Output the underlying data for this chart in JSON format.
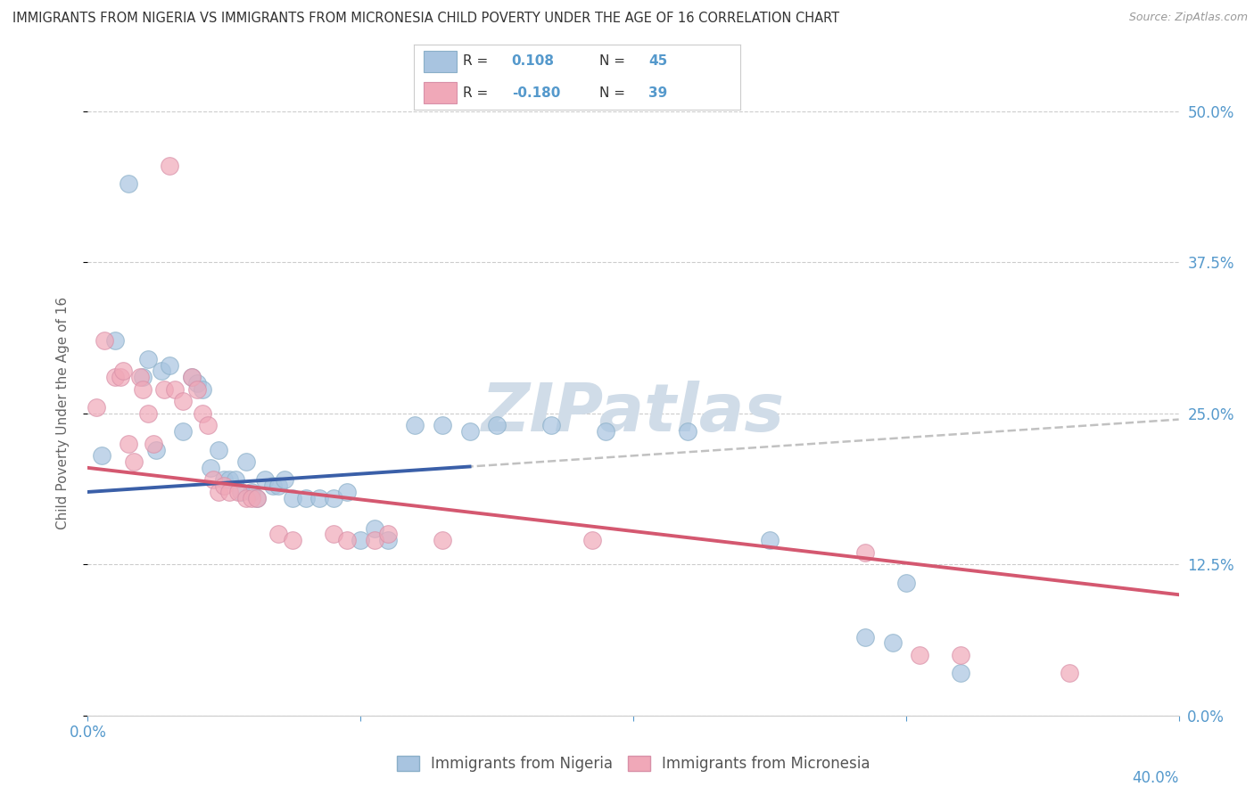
{
  "title": "IMMIGRANTS FROM NIGERIA VS IMMIGRANTS FROM MICRONESIA CHILD POVERTY UNDER THE AGE OF 16 CORRELATION CHART",
  "source": "Source: ZipAtlas.com",
  "ylabel": "Child Poverty Under the Age of 16",
  "xlim": [
    0.0,
    40.0
  ],
  "ylim": [
    0.0,
    50.0
  ],
  "yticks": [
    0.0,
    12.5,
    25.0,
    37.5,
    50.0
  ],
  "xticks": [
    0.0,
    10.0,
    20.0,
    30.0,
    40.0
  ],
  "nigeria_color": "#a8c4e0",
  "nigeria_edge_color": "#8aafc8",
  "nigeria_line_color": "#3a5fa8",
  "micronesia_color": "#f0a8b8",
  "micronesia_edge_color": "#d890a8",
  "micronesia_line_color": "#d45870",
  "nigeria_R": 0.108,
  "nigeria_N": 45,
  "micronesia_R": -0.18,
  "micronesia_N": 39,
  "nigeria_line_x0": 0.0,
  "nigeria_line_y0": 18.5,
  "nigeria_line_x1": 40.0,
  "nigeria_line_y1": 24.5,
  "micronesia_line_x0": 0.0,
  "micronesia_line_y0": 20.5,
  "micronesia_line_x1": 40.0,
  "micronesia_line_y1": 10.0,
  "nigeria_scatter": [
    [
      0.5,
      21.5
    ],
    [
      1.0,
      31.0
    ],
    [
      1.5,
      44.0
    ],
    [
      2.0,
      28.0
    ],
    [
      2.2,
      29.5
    ],
    [
      2.5,
      22.0
    ],
    [
      2.7,
      28.5
    ],
    [
      3.0,
      29.0
    ],
    [
      3.5,
      23.5
    ],
    [
      3.8,
      28.0
    ],
    [
      4.0,
      27.5
    ],
    [
      4.2,
      27.0
    ],
    [
      4.5,
      20.5
    ],
    [
      4.8,
      22.0
    ],
    [
      5.0,
      19.5
    ],
    [
      5.2,
      19.5
    ],
    [
      5.4,
      19.5
    ],
    [
      5.6,
      18.5
    ],
    [
      5.8,
      21.0
    ],
    [
      6.0,
      18.5
    ],
    [
      6.2,
      18.0
    ],
    [
      6.5,
      19.5
    ],
    [
      6.8,
      19.0
    ],
    [
      7.0,
      19.0
    ],
    [
      7.2,
      19.5
    ],
    [
      7.5,
      18.0
    ],
    [
      8.0,
      18.0
    ],
    [
      8.5,
      18.0
    ],
    [
      9.0,
      18.0
    ],
    [
      9.5,
      18.5
    ],
    [
      10.0,
      14.5
    ],
    [
      10.5,
      15.5
    ],
    [
      11.0,
      14.5
    ],
    [
      12.0,
      24.0
    ],
    [
      13.0,
      24.0
    ],
    [
      14.0,
      23.5
    ],
    [
      15.0,
      24.0
    ],
    [
      17.0,
      24.0
    ],
    [
      19.0,
      23.5
    ],
    [
      22.0,
      23.5
    ],
    [
      25.0,
      14.5
    ],
    [
      28.5,
      6.5
    ],
    [
      29.5,
      6.0
    ],
    [
      30.0,
      11.0
    ],
    [
      32.0,
      3.5
    ]
  ],
  "micronesia_scatter": [
    [
      0.3,
      25.5
    ],
    [
      0.6,
      31.0
    ],
    [
      1.0,
      28.0
    ],
    [
      1.2,
      28.0
    ],
    [
      1.3,
      28.5
    ],
    [
      1.5,
      22.5
    ],
    [
      1.7,
      21.0
    ],
    [
      1.9,
      28.0
    ],
    [
      2.0,
      27.0
    ],
    [
      2.2,
      25.0
    ],
    [
      2.4,
      22.5
    ],
    [
      2.8,
      27.0
    ],
    [
      3.0,
      45.5
    ],
    [
      3.2,
      27.0
    ],
    [
      3.5,
      26.0
    ],
    [
      3.8,
      28.0
    ],
    [
      4.0,
      27.0
    ],
    [
      4.2,
      25.0
    ],
    [
      4.4,
      24.0
    ],
    [
      4.6,
      19.5
    ],
    [
      4.8,
      18.5
    ],
    [
      5.0,
      19.0
    ],
    [
      5.2,
      18.5
    ],
    [
      5.5,
      18.5
    ],
    [
      5.8,
      18.0
    ],
    [
      6.0,
      18.0
    ],
    [
      6.2,
      18.0
    ],
    [
      7.0,
      15.0
    ],
    [
      7.5,
      14.5
    ],
    [
      9.0,
      15.0
    ],
    [
      9.5,
      14.5
    ],
    [
      10.5,
      14.5
    ],
    [
      11.0,
      15.0
    ],
    [
      13.0,
      14.5
    ],
    [
      18.5,
      14.5
    ],
    [
      28.5,
      13.5
    ],
    [
      30.5,
      5.0
    ],
    [
      32.0,
      5.0
    ],
    [
      36.0,
      3.5
    ]
  ],
  "background_color": "#ffffff",
  "grid_color": "#cccccc",
  "axis_label_color": "#5599cc",
  "title_color": "#333333",
  "watermark": "ZIPatlas",
  "watermark_color": "#d0dce8"
}
